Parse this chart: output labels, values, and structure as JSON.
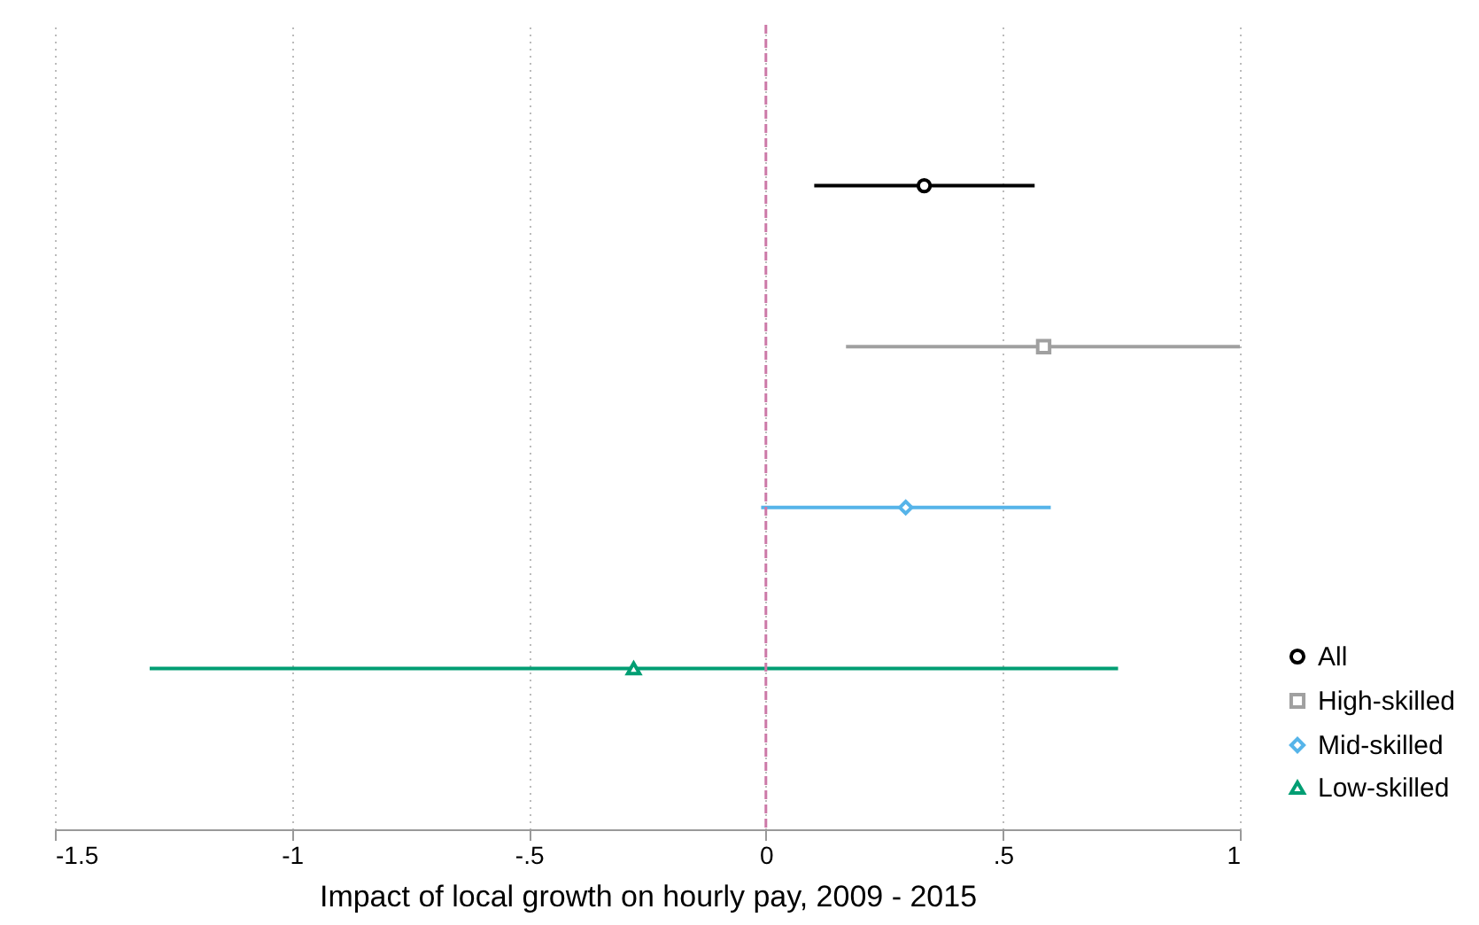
{
  "chart_data": {
    "type": "scatter",
    "orientation": "horizontal",
    "xlabel": "Impact of local growth on hourly pay, 2009 - 2015",
    "categories": [
      null,
      null,
      null,
      null
    ],
    "series": [
      {
        "name": "All",
        "color": "#000000",
        "marker": "circle",
        "values": [
          0.334,
          null,
          null,
          null
        ],
        "errors": [
          [
            0.102,
            0.567
          ],
          null,
          null,
          null
        ]
      },
      {
        "name": "High-skilled",
        "color": "#a0a0a0",
        "marker": "square",
        "values": [
          null,
          0.586,
          null,
          null
        ],
        "errors": [
          null,
          [
            0.169,
            1.0
          ],
          null,
          null
        ]
      },
      {
        "name": "Mid-skilled",
        "color": "#56b4e9",
        "marker": "diamond",
        "values": [
          null,
          null,
          0.295,
          null
        ],
        "errors": [
          null,
          null,
          [
            -0.01,
            0.601
          ],
          null
        ]
      },
      {
        "name": "Low-skilled",
        "color": "#009e73",
        "marker": "triangle",
        "values": [
          null,
          null,
          null,
          -0.279
        ],
        "errors": [
          null,
          null,
          null,
          [
            -1.3,
            0.743
          ]
        ]
      }
    ],
    "xlim": [
      -1.5,
      1
    ],
    "xticks": [
      {
        "value": -1.5,
        "label": "-1.5"
      },
      {
        "value": -1,
        "label": "-1"
      },
      {
        "value": -0.5,
        "label": "-.5"
      },
      {
        "value": 0,
        "label": "0"
      },
      {
        "value": 0.5,
        "label": ".5"
      },
      {
        "value": 1,
        "label": "1"
      }
    ],
    "ref_lines": [
      {
        "axis": "x",
        "value": 0,
        "color": "#cc79a7",
        "line_style": "dashed"
      }
    ],
    "grid": "x",
    "legend": "bottom right"
  }
}
